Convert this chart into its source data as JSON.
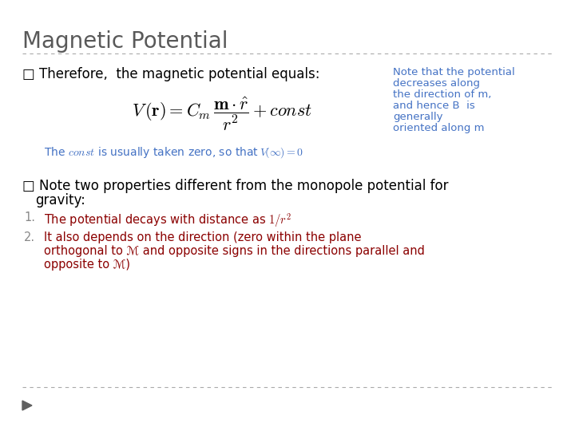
{
  "title": "Magnetic Potential",
  "title_color": "#595959",
  "title_fontsize": 20,
  "background_color": "#ffffff",
  "line_color": "#aaaaaa",
  "bullet1_color": "#000000",
  "bullet1_fontsize": 12,
  "note_lines": [
    "Note that the potential",
    "decreases along",
    "the direction of m,",
    "and hence B  is",
    "generally",
    "oriented along m"
  ],
  "note_color": "#4472c4",
  "note_fontsize": 9.5,
  "const_color": "#4472c4",
  "const_fontsize": 10,
  "bullet2_color": "#000000",
  "bullet2_fontsize": 12,
  "item_color": "#8b0000",
  "item_fontsize": 10.5,
  "formula_color": "#000000",
  "bottom_line_color": "#aaaaaa",
  "arrow_color": "#606060"
}
